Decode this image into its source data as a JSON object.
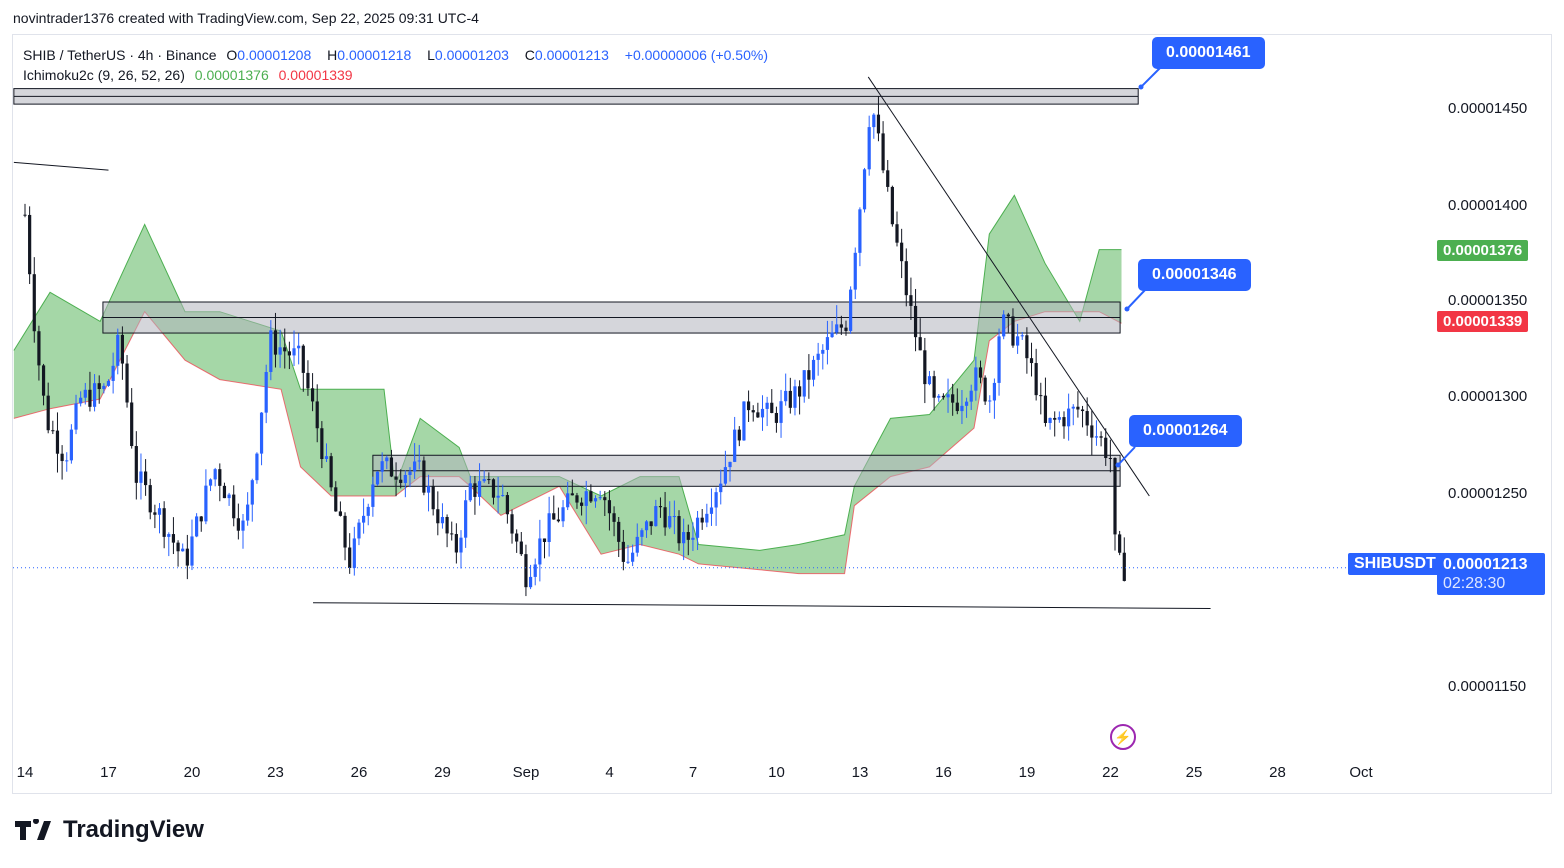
{
  "credit": "novintrader1376 created with TradingView.com, Sep 22, 2025 09:31 UTC-4",
  "legend": {
    "symbol": "SHIB / TetherUS · 4h · Binance",
    "o_label": "O",
    "o": "0.00001208",
    "h_label": "H",
    "h": "0.00001218",
    "l_label": "L",
    "l": "0.00001203",
    "c_label": "C",
    "c": "0.00001213",
    "change": "+0.00000006 (+0.50%)",
    "indicator": "Ichimoku2c (9, 26, 52, 26)",
    "ind_val1": "0.00001376",
    "ind_val2": "0.00001339"
  },
  "price_axis": [
    "0.00001450",
    "0.00001400",
    "0.00001350",
    "0.00001300",
    "0.00001250",
    "0.00001150"
  ],
  "badges": {
    "ichimoku_a": "0.00001376",
    "ichimoku_b": "0.00001339",
    "symbol": "SHIBUSDT",
    "current": "0.00001213",
    "countdown": "02:28:30"
  },
  "callouts": [
    "0.00001461",
    "0.00001346",
    "0.00001264"
  ],
  "date_axis": [
    "14",
    "17",
    "20",
    "23",
    "26",
    "29",
    "Sep",
    "4",
    "7",
    "10",
    "13",
    "16",
    "19",
    "22",
    "25",
    "28",
    "Oct"
  ],
  "logo": "TradingView",
  "colors": {
    "up": "#2962ff",
    "down": "#131722",
    "cloud": "#4caf50",
    "cloud_edge": "#f23645",
    "accent": "#2962ff",
    "green": "#4caf50",
    "red": "#f23645"
  },
  "chart_data": {
    "type": "candlestick",
    "price_unit": "1e-8 USDT",
    "interval": "4h",
    "price_path": [
      [
        0,
        1395
      ],
      [
        0.4,
        1330
      ],
      [
        0.75,
        1290
      ],
      [
        1.45,
        1270
      ],
      [
        2,
        1300
      ],
      [
        2.9,
        1305
      ],
      [
        3.4,
        1330
      ],
      [
        4,
        1260
      ],
      [
        4.85,
        1240
      ],
      [
        5.75,
        1215
      ],
      [
        6.8,
        1265
      ],
      [
        7.9,
        1232
      ],
      [
        8.45,
        1290
      ],
      [
        8.8,
        1330
      ],
      [
        9.9,
        1320
      ],
      [
        10.6,
        1280
      ],
      [
        11.1,
        1245
      ],
      [
        11.7,
        1215
      ],
      [
        12.6,
        1265
      ],
      [
        14.2,
        1262
      ],
      [
        15.45,
        1220
      ],
      [
        16,
        1255
      ],
      [
        17.1,
        1252
      ],
      [
        18,
        1210
      ],
      [
        18.7,
        1232
      ],
      [
        19.8,
        1250
      ],
      [
        20.7,
        1255
      ],
      [
        21.6,
        1215
      ],
      [
        22.8,
        1245
      ],
      [
        23.7,
        1225
      ],
      [
        25,
        1260
      ],
      [
        26.05,
        1300
      ],
      [
        26.8,
        1290
      ],
      [
        27.85,
        1305
      ],
      [
        28.9,
        1330
      ],
      [
        29.5,
        1340
      ],
      [
        30,
        1400
      ],
      [
        30.4,
        1455
      ],
      [
        31.1,
        1395
      ],
      [
        31.6,
        1360
      ],
      [
        32.2,
        1320
      ],
      [
        32.7,
        1295
      ],
      [
        33.6,
        1300
      ],
      [
        34.1,
        1312
      ],
      [
        34.7,
        1300
      ],
      [
        35.05,
        1340
      ],
      [
        35.75,
        1330
      ],
      [
        36.3,
        1310
      ],
      [
        36.65,
        1285
      ],
      [
        37.2,
        1290
      ],
      [
        37.9,
        1295
      ],
      [
        38.6,
        1280
      ],
      [
        39,
        1270
      ],
      [
        39.2,
        1215
      ],
      [
        39.5,
        1213
      ]
    ],
    "ichimoku_upper": [
      [
        -0.4,
        1325
      ],
      [
        0.9,
        1355
      ],
      [
        2.7,
        1340
      ],
      [
        4.3,
        1390
      ],
      [
        5.75,
        1345
      ],
      [
        7,
        1345
      ],
      [
        9.2,
        1335
      ],
      [
        9.9,
        1305
      ],
      [
        11,
        1305
      ],
      [
        12.9,
        1305
      ],
      [
        13.3,
        1255
      ],
      [
        14.2,
        1290
      ],
      [
        15.6,
        1275
      ],
      [
        16,
        1260
      ],
      [
        17.1,
        1260
      ],
      [
        19.2,
        1260
      ],
      [
        20.7,
        1250
      ],
      [
        22.1,
        1260
      ],
      [
        23.5,
        1260
      ],
      [
        24.2,
        1225
      ],
      [
        26.4,
        1222
      ],
      [
        27.8,
        1225
      ],
      [
        29.45,
        1230
      ],
      [
        29.8,
        1255
      ],
      [
        31.1,
        1290
      ],
      [
        32.5,
        1292
      ],
      [
        34.1,
        1320
      ],
      [
        34.65,
        1385
      ],
      [
        35.55,
        1405
      ],
      [
        36.65,
        1370
      ],
      [
        37.9,
        1340
      ],
      [
        38.6,
        1377
      ],
      [
        39.4,
        1377
      ]
    ],
    "ichimoku_lower": [
      [
        -0.4,
        1290
      ],
      [
        0.9,
        1295
      ],
      [
        2.7,
        1300
      ],
      [
        4.3,
        1345
      ],
      [
        5.75,
        1320
      ],
      [
        7,
        1310
      ],
      [
        9.2,
        1305
      ],
      [
        9.9,
        1265
      ],
      [
        11,
        1250
      ],
      [
        12.9,
        1250
      ],
      [
        13.3,
        1250
      ],
      [
        14.2,
        1260
      ],
      [
        15.6,
        1260
      ],
      [
        16,
        1255
      ],
      [
        17.1,
        1240
      ],
      [
        19.2,
        1255
      ],
      [
        20.7,
        1220
      ],
      [
        22.1,
        1225
      ],
      [
        23.5,
        1220
      ],
      [
        24.2,
        1215
      ],
      [
        26.4,
        1212
      ],
      [
        27.8,
        1210
      ],
      [
        29.45,
        1210
      ],
      [
        29.8,
        1245
      ],
      [
        31.1,
        1260
      ],
      [
        32.5,
        1265
      ],
      [
        34.1,
        1285
      ],
      [
        34.65,
        1330
      ],
      [
        35.55,
        1340
      ],
      [
        36.65,
        1345
      ],
      [
        37.9,
        1345
      ],
      [
        38.6,
        1345
      ],
      [
        39.4,
        1339
      ]
    ],
    "zones": [
      [
        -0.4,
        40.0,
        1452,
        1460
      ],
      [
        2.8,
        39.35,
        1334,
        1350
      ],
      [
        12.5,
        39.35,
        1255,
        1271
      ]
    ],
    "trendlines": [
      [
        30.3,
        1466,
        40.4,
        1250
      ],
      [
        10.35,
        1195,
        42.6,
        1192
      ],
      [
        -0.4,
        1422,
        3.0,
        1418
      ]
    ],
    "current_price": 1213
  }
}
